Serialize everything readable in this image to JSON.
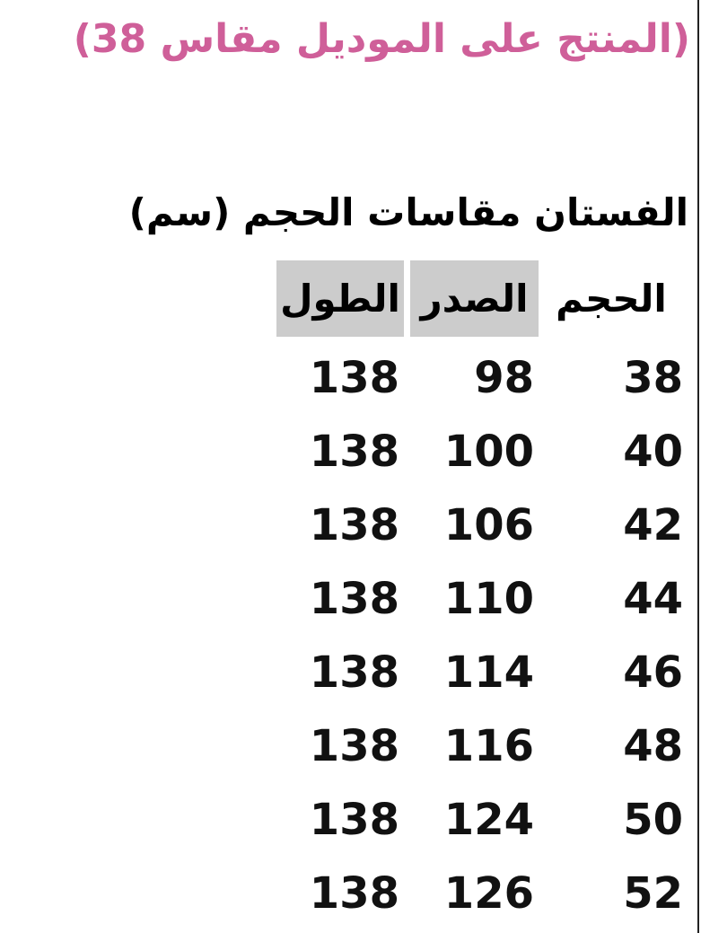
{
  "title": "(المنتج على الموديل مقاس 38)",
  "subtitle": "الفستان مقاسات الحجم (سم)",
  "accent_color": "#cf5f99",
  "table": {
    "headers": [
      "الحجم",
      "الصدر",
      "الطول"
    ],
    "rows": [
      [
        "38",
        "98",
        "138"
      ],
      [
        "40",
        "100",
        "138"
      ],
      [
        "42",
        "106",
        "138"
      ],
      [
        "44",
        "110",
        "138"
      ],
      [
        "46",
        "114",
        "138"
      ],
      [
        "48",
        "116",
        "138"
      ],
      [
        "50",
        "124",
        "138"
      ],
      [
        "52",
        "126",
        "138"
      ]
    ]
  }
}
